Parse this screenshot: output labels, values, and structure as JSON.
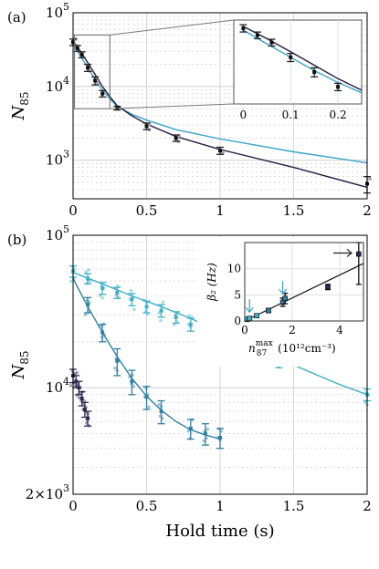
{
  "chart_data": [
    {
      "panel": "(a)",
      "type": "scatter",
      "ylabel_main": "N",
      "ylabel_sub": "85",
      "yscale": "log",
      "xlim": [
        0,
        2
      ],
      "ylim": [
        300,
        100000
      ],
      "x_ticks": [
        "0",
        "0.5",
        "1",
        "1.5",
        "2"
      ],
      "y_ticks": [
        {
          "base": "10",
          "exp": "3",
          "v": 1000
        },
        {
          "base": "10",
          "exp": "4",
          "v": 10000
        },
        {
          "base": "10",
          "exp": "5",
          "v": 100000
        }
      ],
      "averages": [
        {
          "x": 0.0,
          "y": 40000,
          "err": 4000
        },
        {
          "x": 0.03,
          "y": 33000,
          "err": 3000
        },
        {
          "x": 0.06,
          "y": 27000,
          "err": 2500
        },
        {
          "x": 0.1,
          "y": 18000,
          "err": 2000
        },
        {
          "x": 0.15,
          "y": 12000,
          "err": 1500
        },
        {
          "x": 0.2,
          "y": 8000,
          "err": 800
        },
        {
          "x": 0.3,
          "y": 5100,
          "err": 300
        },
        {
          "x": 0.5,
          "y": 2900,
          "err": 300
        },
        {
          "x": 0.7,
          "y": 2000,
          "err": 200
        },
        {
          "x": 1.0,
          "y": 1350,
          "err": 150
        },
        {
          "x": 2.0,
          "y": 480,
          "err": 120
        }
      ],
      "shots": [
        {
          "x": 0.0,
          "y": 36000
        },
        {
          "x": 0.0,
          "y": 44000
        },
        {
          "x": 0.1,
          "y": 16000
        },
        {
          "x": 0.15,
          "y": 11000
        },
        {
          "x": 0.5,
          "y": 2600
        },
        {
          "x": 0.5,
          "y": 3100
        },
        {
          "x": 0.7,
          "y": 1800
        },
        {
          "x": 0.7,
          "y": 2150
        },
        {
          "x": 1.0,
          "y": 1250
        },
        {
          "x": 2.0,
          "y": 560
        }
      ],
      "fit_dark": {
        "x": [
          0,
          0.05,
          0.1,
          0.15,
          0.2,
          0.25,
          0.3,
          0.4,
          0.5,
          0.7,
          1.0,
          1.5,
          2.0
        ],
        "y": [
          42000,
          30000,
          21000,
          14500,
          10000,
          7300,
          5500,
          4000,
          3100,
          2100,
          1400,
          800,
          430
        ]
      },
      "fit_light": {
        "x": [
          0,
          0.05,
          0.1,
          0.15,
          0.2,
          0.25,
          0.3,
          0.4,
          0.5,
          0.7,
          1.0,
          1.5,
          2.0
        ],
        "y": [
          38000,
          26000,
          18000,
          12500,
          9000,
          6800,
          5400,
          4200,
          3500,
          2600,
          1950,
          1300,
          920
        ]
      },
      "inset": {
        "xlim": [
          -0.02,
          0.25
        ],
        "ylim": [
          5000,
          50000
        ],
        "x_ticks": [
          "0",
          "0.1",
          "0.2"
        ]
      }
    },
    {
      "panel": "(b)",
      "type": "scatter",
      "xlabel": "Hold time (s)",
      "ylabel_main": "N",
      "ylabel_sub": "85",
      "yscale": "log",
      "xlim": [
        0,
        2
      ],
      "ylim": [
        2000,
        100000
      ],
      "x_ticks": [
        "0",
        "0.5",
        "1",
        "1.5",
        "2"
      ],
      "y_ticks": [
        {
          "base": "2×10",
          "exp": "3",
          "v": 2000
        },
        {
          "base": "10",
          "exp": "4",
          "v": 10000
        },
        {
          "base": "10",
          "exp": "5",
          "v": 100000
        }
      ],
      "series": [
        {
          "color": "#3fb0c8",
          "averages": [
            {
              "x": 0.0,
              "y": 58000,
              "err": 5000
            },
            {
              "x": 0.1,
              "y": 52000,
              "err": 4000
            },
            {
              "x": 0.2,
              "y": 45000,
              "err": 4000
            },
            {
              "x": 0.3,
              "y": 42000,
              "err": 3500
            },
            {
              "x": 0.4,
              "y": 38000,
              "err": 3500
            },
            {
              "x": 0.5,
              "y": 34000,
              "err": 3000
            },
            {
              "x": 0.6,
              "y": 32000,
              "err": 3000
            },
            {
              "x": 0.7,
              "y": 29000,
              "err": 2500
            },
            {
              "x": 0.8,
              "y": 26000,
              "err": 2500
            },
            {
              "x": 1.0,
              "y": 22000,
              "err": 2000
            },
            {
              "x": 1.4,
              "y": 15000,
              "err": 1500
            },
            {
              "x": 2.0,
              "y": 9000,
              "err": 800
            }
          ],
          "fit": {
            "x": [
              0,
              0.2,
              0.4,
              0.6,
              0.8,
              1.0,
              1.2,
              1.4,
              1.6,
              1.8,
              2.0
            ],
            "y": [
              57000,
              48000,
              40000,
              34000,
              28500,
              23000,
              19000,
              15500,
              12800,
              10600,
              9000
            ]
          }
        },
        {
          "color": "#2e7fa0",
          "averages": [
            {
              "x": 0.1,
              "y": 35000,
              "err": 4000
            },
            {
              "x": 0.2,
              "y": 23000,
              "err": 3000
            },
            {
              "x": 0.3,
              "y": 15000,
              "err": 3000
            },
            {
              "x": 0.4,
              "y": 11000,
              "err": 2000
            },
            {
              "x": 0.5,
              "y": 8700,
              "err": 1500
            },
            {
              "x": 0.6,
              "y": 7000,
              "err": 1200
            },
            {
              "x": 0.8,
              "y": 5400,
              "err": 800
            },
            {
              "x": 0.9,
              "y": 5000,
              "err": 800
            },
            {
              "x": 1.0,
              "y": 4700,
              "err": 700
            }
          ],
          "fit": {
            "x": [
              0,
              0.1,
              0.2,
              0.3,
              0.4,
              0.5,
              0.6,
              0.7,
              0.8,
              0.9,
              1.0
            ],
            "y": [
              52000,
              34000,
              23000,
              16000,
              11500,
              8800,
              7100,
              6000,
              5300,
              4900,
              4600
            ]
          }
        },
        {
          "color": "#2b2a50",
          "averages": [
            {
              "x": 0.0,
              "y": 12000,
              "err": 1200
            },
            {
              "x": 0.02,
              "y": 11000,
              "err": 1000
            },
            {
              "x": 0.04,
              "y": 10000,
              "err": 1000
            },
            {
              "x": 0.06,
              "y": 8500,
              "err": 900
            },
            {
              "x": 0.08,
              "y": 7200,
              "err": 800
            },
            {
              "x": 0.1,
              "y": 6300,
              "err": 700
            }
          ]
        }
      ],
      "inset": {
        "ylabel": "β₂ (Hz)",
        "xlabel_pre": "n",
        "xlabel_sup": "max",
        "xlabel_sub": "87",
        "xlabel_units": "(10¹²cm⁻³)",
        "xlim": [
          0,
          5
        ],
        "ylim": [
          0,
          15
        ],
        "x_ticks": [
          "0",
          "2",
          "4"
        ],
        "y_ticks": [
          "0",
          "5",
          "10"
        ],
        "points": [
          {
            "x": 0.1,
            "y": 0.3,
            "err": 0.3
          },
          {
            "x": 0.2,
            "y": 0.5,
            "err": 0.3
          },
          {
            "x": 0.5,
            "y": 1.0,
            "err": 0.3
          },
          {
            "x": 1.0,
            "y": 2.0,
            "err": 0.4
          },
          {
            "x": 1.6,
            "y": 3.6,
            "err": 0.8
          },
          {
            "x": 1.7,
            "y": 4.3,
            "err": 1.0
          },
          {
            "x": 3.5,
            "y": 6.5,
            "err": 0.5
          },
          {
            "x": 4.8,
            "y": 12.8,
            "err": 5.8
          }
        ],
        "fit": {
          "x": [
            0,
            5
          ],
          "y": [
            0,
            11
          ]
        }
      }
    }
  ]
}
